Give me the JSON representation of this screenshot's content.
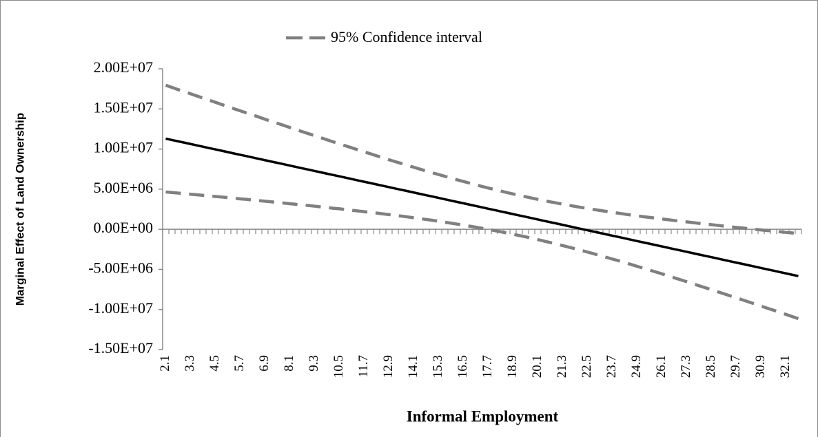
{
  "chart_data": {
    "type": "line",
    "x_label": "Informal Employment",
    "y_label": "Marginal Effect of Land Ownership",
    "categories": [
      "2.1",
      null,
      null,
      null,
      "3.3",
      null,
      null,
      null,
      "4.5",
      null,
      null,
      null,
      "5.7",
      null,
      null,
      null,
      "6.9",
      null,
      null,
      null,
      "8.1",
      null,
      null,
      null,
      "9.3",
      null,
      null,
      null,
      "10.5",
      null,
      null,
      null,
      "11.7",
      null,
      null,
      null,
      "12.9",
      null,
      null,
      null,
      "14.1",
      null,
      null,
      null,
      "15.3",
      null,
      null,
      null,
      "16.5",
      null,
      null,
      null,
      "17.7",
      null,
      null,
      null,
      "18.9",
      null,
      null,
      null,
      "20.1",
      null,
      null,
      null,
      "21.3",
      null,
      null,
      null,
      "22.5",
      null,
      null,
      null,
      "23.7",
      null,
      null,
      null,
      "24.9",
      null,
      null,
      null,
      "26.1",
      null,
      null,
      null,
      "27.3",
      null,
      null,
      null,
      "28.5",
      null,
      null,
      null,
      "29.7",
      null,
      null,
      null,
      "30.9",
      null,
      null,
      null,
      "32.1",
      null,
      null
    ],
    "series": [
      {
        "color": "#808080",
        "dashed": true,
        "values": [
          4650000,
          4580000,
          4510000,
          4440000,
          4370000,
          4300000,
          4230000,
          4150000,
          4090000,
          4020000,
          3940000,
          3870000,
          3790000,
          3730000,
          3650000,
          3570000,
          3500000,
          3420000,
          3350000,
          3270000,
          3190000,
          3110000,
          3030000,
          2960000,
          2880000,
          2790000,
          2710000,
          2620000,
          2550000,
          2460000,
          2370000,
          2280000,
          2190000,
          2110000,
          2020000,
          1920000,
          1830000,
          1730000,
          1640000,
          1540000,
          1430000,
          1330000,
          1220000,
          1120000,
          1000000,
          880000,
          760000,
          640000,
          520000,
          390000,
          260000,
          120000,
          -20000,
          -160000,
          -310000,
          -460000,
          -620000,
          -780000,
          -940000,
          -1110000,
          -1290000,
          -1470000,
          -1660000,
          -1840000,
          -2030000,
          -2230000,
          -2430000,
          -2640000,
          -2840000,
          -3050000,
          -3270000,
          -3490000,
          -3710000,
          -3920000,
          -4150000,
          -4380000,
          -4620000,
          -4850000,
          -5080000,
          -5320000,
          -5560000,
          -5810000,
          -6050000,
          -6290000,
          -6540000,
          -6790000,
          -7040000,
          -7290000,
          -7530000,
          -7790000,
          -8040000,
          -8300000,
          -8550000,
          -8800000,
          -9060000,
          -9320000,
          -9580000,
          -9840000,
          -10090000,
          -10350000,
          -10610000,
          -10880000,
          -11140000
        ]
      },
      {
        "color": "#000000",
        "dashed": false,
        "values": [
          11300000,
          11130000,
          10960000,
          10800000,
          10630000,
          10460000,
          10290000,
          10120000,
          9960000,
          9790000,
          9620000,
          9450000,
          9280000,
          9120000,
          8950000,
          8780000,
          8610000,
          8440000,
          8280000,
          8110000,
          7940000,
          7770000,
          7600000,
          7440000,
          7270000,
          7100000,
          6930000,
          6760000,
          6600000,
          6430000,
          6260000,
          6090000,
          5920000,
          5760000,
          5590000,
          5420000,
          5250000,
          5080000,
          4920000,
          4750000,
          4580000,
          4410000,
          4240000,
          4080000,
          3910000,
          3740000,
          3570000,
          3400000,
          3240000,
          3070000,
          2900000,
          2730000,
          2560000,
          2400000,
          2230000,
          2060000,
          1890000,
          1720000,
          1560000,
          1390000,
          1220000,
          1050000,
          880000,
          720000,
          550000,
          380000,
          210000,
          40000,
          -120000,
          -290000,
          -460000,
          -630000,
          -800000,
          -960000,
          -1130000,
          -1300000,
          -1470000,
          -1640000,
          -1800000,
          -1970000,
          -2140000,
          -2310000,
          -2480000,
          -2640000,
          -2810000,
          -2980000,
          -3150000,
          -3320000,
          -3480000,
          -3650000,
          -3820000,
          -3990000,
          -4160000,
          -4320000,
          -4490000,
          -4660000,
          -4830000,
          -5000000,
          -5160000,
          -5330000,
          -5500000,
          -5670000,
          -5840000
        ]
      },
      {
        "name": "95% Confidence interval",
        "color": "#808080",
        "dashed": true,
        "values": [
          17950000,
          17680000,
          17410000,
          17160000,
          16890000,
          16620000,
          16350000,
          16090000,
          15830000,
          15560000,
          15300000,
          15030000,
          14770000,
          14510000,
          14250000,
          13990000,
          13720000,
          13460000,
          13210000,
          12950000,
          12690000,
          12430000,
          12170000,
          11920000,
          11660000,
          11410000,
          11150000,
          10900000,
          10650000,
          10400000,
          10150000,
          9900000,
          9650000,
          9410000,
          9160000,
          8920000,
          8670000,
          8430000,
          8200000,
          7960000,
          7730000,
          7490000,
          7260000,
          7040000,
          6820000,
          6600000,
          6380000,
          6160000,
          5960000,
          5750000,
          5540000,
          5340000,
          5140000,
          4960000,
          4770000,
          4580000,
          4400000,
          4220000,
          4060000,
          3890000,
          3730000,
          3570000,
          3420000,
          3280000,
          3130000,
          2990000,
          2850000,
          2720000,
          2600000,
          2470000,
          2350000,
          2230000,
          2110000,
          2000000,
          1890000,
          1780000,
          1680000,
          1570000,
          1480000,
          1380000,
          1280000,
          1190000,
          1090000,
          1010000,
          920000,
          830000,
          740000,
          650000,
          570000,
          490000,
          400000,
          320000,
          230000,
          160000,
          80000,
          0,
          -80000,
          -160000,
          -230000,
          -310000,
          -390000,
          -460000,
          -540000
        ]
      }
    ],
    "ylim": [
      -15000000,
      20000000
    ],
    "yticks": [
      {
        "value": -15000000,
        "label": "-1.50E+07"
      },
      {
        "value": -10000000,
        "label": "-1.00E+07"
      },
      {
        "value": -5000000,
        "label": "-5.00E+06"
      },
      {
        "value": 0,
        "label": "0.00E+00"
      },
      {
        "value": 5000000,
        "label": "5.00E+06"
      },
      {
        "value": 10000000,
        "label": "1.00E+07"
      },
      {
        "value": 15000000,
        "label": "1.50E+07"
      },
      {
        "value": 20000000,
        "label": "2.00E+07"
      }
    ],
    "grid": false,
    "legend": "top"
  }
}
